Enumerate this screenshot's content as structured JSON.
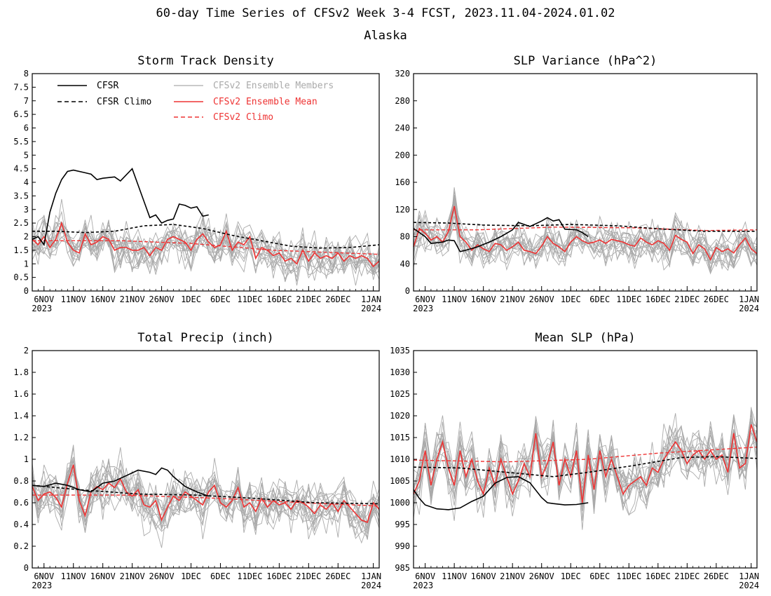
{
  "page": {
    "title": "60-day Time Series of CFSv2 Week 3-4 FCST, 2023.11.04-2024.01.02",
    "region": "Alaska"
  },
  "legend": {
    "cfsr": "CFSR",
    "cfsr_climo": "CFSR Climo",
    "members": "CFSv2 Ensemble Members",
    "ens_mean": "CFSv2 Ensemble Mean",
    "cfsv2_climo": "CFSv2 Climo"
  },
  "colors": {
    "cfsr": "#000000",
    "members": "#aaaaaa",
    "ens_mean": "#ee3333",
    "cfsv2_climo": "#ee3333",
    "axes": "#000000"
  },
  "chart_data": [
    {
      "id": "storm",
      "type": "line",
      "title": "Storm Track Density",
      "xlabel": "",
      "ylabel": "",
      "x_range": [
        "2023-11-04",
        "2024-01-02"
      ],
      "ylim": [
        0,
        8
      ],
      "yticks": [
        0,
        0.5,
        1,
        1.5,
        2,
        2.5,
        3,
        3.5,
        4,
        4.5,
        5,
        5.5,
        6,
        6.5,
        7,
        7.5,
        8
      ],
      "ytick_labels": [
        "0",
        "0.5",
        "1",
        "1.5",
        "2",
        "2.5",
        "3",
        "3.5",
        "4",
        "4.5",
        "5",
        "5.5",
        "6",
        "6.5",
        "7",
        "7.5",
        "8"
      ],
      "xtick_labels": [
        "6NOV",
        "11NOV",
        "16NOV",
        "21NOV",
        "26NOV",
        "1DEC",
        "6DEC",
        "11DEC",
        "16DEC",
        "21DEC",
        "26DEC",
        "1JAN"
      ],
      "xtick_year_labels": {
        "6NOV": "2023",
        "1JAN": "2024"
      },
      "cfsr": {
        "x": [
          "2023-11-04",
          "2023-11-05",
          "2023-11-06",
          "2023-11-07",
          "2023-11-08",
          "2023-11-09",
          "2023-11-10",
          "2023-11-11",
          "2023-11-13",
          "2023-11-14",
          "2023-11-15",
          "2023-11-16",
          "2023-11-18",
          "2023-11-19",
          "2023-11-21",
          "2023-11-22",
          "2023-11-23",
          "2023-11-24",
          "2023-11-25",
          "2023-11-26",
          "2023-11-27",
          "2023-11-28",
          "2023-11-29",
          "2023-11-30",
          "2023-12-01",
          "2023-12-02",
          "2023-12-03",
          "2023-12-04"
        ],
        "y": [
          1.9,
          2.0,
          1.7,
          2.9,
          3.6,
          4.1,
          4.4,
          4.45,
          4.35,
          4.3,
          4.1,
          4.15,
          4.2,
          4.05,
          4.5,
          3.9,
          3.3,
          2.7,
          2.8,
          2.5,
          2.6,
          2.65,
          3.2,
          3.15,
          3.05,
          3.1,
          2.75,
          2.8
        ]
      },
      "cfsr_climo": {
        "x": [
          "2023-11-04",
          "2023-11-08",
          "2023-11-13",
          "2023-11-18",
          "2023-11-23",
          "2023-11-28",
          "2023-12-03",
          "2023-12-08",
          "2023-12-13",
          "2023-12-18",
          "2023-12-23",
          "2023-12-28",
          "2024-01-02"
        ],
        "y": [
          2.2,
          2.2,
          2.15,
          2.2,
          2.4,
          2.45,
          2.3,
          2.05,
          1.85,
          1.65,
          1.58,
          1.6,
          1.7
        ]
      },
      "ens_mean": {
        "x_start": "2023-11-04",
        "y": [
          1.9,
          1.7,
          2.0,
          1.6,
          1.9,
          2.5,
          1.8,
          1.5,
          1.4,
          2.1,
          1.7,
          1.8,
          2.0,
          1.9,
          1.5,
          1.6,
          1.6,
          1.5,
          1.5,
          1.6,
          1.3,
          1.6,
          1.5,
          1.9,
          2.0,
          1.9,
          1.8,
          1.5,
          1.9,
          2.1,
          1.8,
          1.6,
          1.7,
          2.2,
          1.5,
          1.8,
          1.7,
          2.0,
          1.2,
          1.6,
          1.5,
          1.3,
          1.4,
          1.1,
          1.2,
          1.0,
          1.5,
          1.1,
          1.4,
          1.2,
          1.3,
          1.2,
          1.4,
          1.1,
          1.3,
          1.2,
          1.3,
          1.2,
          0.9,
          1.1
        ]
      },
      "cfsv2_climo": {
        "x": [
          "2023-11-04",
          "2023-11-19",
          "2023-12-01",
          "2023-12-15",
          "2024-01-02"
        ],
        "y": [
          1.85,
          1.85,
          1.75,
          1.5,
          1.35
        ]
      },
      "members": {
        "count": 16,
        "x_start": "2023-11-04",
        "y_ref": "ens_mean",
        "spread": 0.75
      }
    },
    {
      "id": "slpvar",
      "type": "line",
      "title": "SLP Variance (hPa^2)",
      "xlabel": "",
      "ylabel": "",
      "x_range": [
        "2023-11-04",
        "2024-01-02"
      ],
      "ylim": [
        0,
        320
      ],
      "yticks": [
        0,
        40,
        80,
        120,
        160,
        200,
        240,
        280,
        320
      ],
      "ytick_labels": [
        "0",
        "40",
        "80",
        "120",
        "160",
        "200",
        "240",
        "280",
        "320"
      ],
      "xtick_labels": [
        "6NOV",
        "11NOV",
        "16NOV",
        "21NOV",
        "26NOV",
        "1DEC",
        "6DEC",
        "11DEC",
        "16DEC",
        "21DEC",
        "26DEC",
        "1JAN"
      ],
      "xtick_year_labels": {
        "6NOV": "2023",
        "1JAN": "2024"
      },
      "cfsr": {
        "x": [
          "2023-11-04",
          "2023-11-06",
          "2023-11-07",
          "2023-11-09",
          "2023-11-10",
          "2023-11-11",
          "2023-11-12",
          "2023-11-13",
          "2023-11-15",
          "2023-11-17",
          "2023-11-19",
          "2023-11-21",
          "2023-11-22",
          "2023-11-24",
          "2023-11-26",
          "2023-11-27",
          "2023-11-28",
          "2023-11-29",
          "2023-11-30",
          "2023-12-02",
          "2023-12-03",
          "2023-12-04"
        ],
        "y": [
          92,
          80,
          70,
          72,
          75,
          74,
          58,
          60,
          65,
          72,
          80,
          90,
          101,
          95,
          103,
          108,
          103,
          105,
          91,
          90,
          86,
          80
        ]
      },
      "cfsr_climo": {
        "x": [
          "2023-11-04",
          "2023-11-10",
          "2023-11-16",
          "2023-11-24",
          "2023-12-01",
          "2023-12-09",
          "2023-12-17",
          "2023-12-24",
          "2024-01-02"
        ],
        "y": [
          101,
          100,
          97,
          96,
          98,
          96,
          91,
          88,
          88
        ]
      },
      "ens_mean": {
        "x_start": "2023-11-04",
        "y": [
          65,
          92,
          85,
          75,
          80,
          72,
          88,
          125,
          80,
          72,
          60,
          68,
          62,
          58,
          70,
          68,
          60,
          65,
          72,
          60,
          58,
          55,
          66,
          80,
          70,
          65,
          58,
          72,
          80,
          74,
          70,
          72,
          75,
          70,
          76,
          74,
          72,
          68,
          66,
          78,
          72,
          68,
          74,
          70,
          60,
          82,
          76,
          72,
          55,
          68,
          62,
          46,
          64,
          58,
          62,
          56,
          68,
          78,
          62,
          55
        ]
      },
      "cfsv2_climo": {
        "x": [
          "2023-11-04",
          "2023-11-15",
          "2023-11-28",
          "2023-12-12",
          "2023-12-24",
          "2024-01-02"
        ],
        "y": [
          90,
          90,
          94,
          93,
          89,
          90
        ]
      },
      "members": {
        "count": 16,
        "x_start": "2023-11-04",
        "y_ref": "ens_mean",
        "spread": 28
      }
    },
    {
      "id": "precip",
      "type": "line",
      "title": "Total Precip (inch)",
      "xlabel": "",
      "ylabel": "",
      "x_range": [
        "2023-11-04",
        "2024-01-02"
      ],
      "ylim": [
        0,
        2
      ],
      "yticks": [
        0,
        0.2,
        0.4,
        0.6,
        0.8,
        1,
        1.2,
        1.4,
        1.6,
        1.8,
        2
      ],
      "ytick_labels": [
        "0",
        "0.2",
        "0.4",
        "0.6",
        "0.8",
        "1",
        "1.2",
        "1.4",
        "1.6",
        "1.8",
        "2"
      ],
      "xtick_labels": [
        "6NOV",
        "11NOV",
        "16NOV",
        "21NOV",
        "26NOV",
        "1DEC",
        "6DEC",
        "11DEC",
        "16DEC",
        "21DEC",
        "26DEC",
        "1JAN"
      ],
      "xtick_year_labels": {
        "6NOV": "2023",
        "1JAN": "2024"
      },
      "cfsr": {
        "x": [
          "2023-11-04",
          "2023-11-06",
          "2023-11-08",
          "2023-11-10",
          "2023-11-12",
          "2023-11-14",
          "2023-11-16",
          "2023-11-18",
          "2023-11-20",
          "2023-11-22",
          "2023-11-24",
          "2023-11-25",
          "2023-11-26",
          "2023-11-27",
          "2023-11-28",
          "2023-11-30",
          "2023-12-02",
          "2023-12-04"
        ],
        "y": [
          0.76,
          0.75,
          0.78,
          0.76,
          0.72,
          0.7,
          0.78,
          0.8,
          0.85,
          0.9,
          0.88,
          0.86,
          0.92,
          0.9,
          0.84,
          0.75,
          0.7,
          0.66
        ]
      },
      "cfsr_climo": {
        "x": [
          "2023-11-04",
          "2023-11-12",
          "2023-11-22",
          "2023-12-02",
          "2023-12-12",
          "2023-12-22",
          "2024-01-02"
        ],
        "y": [
          0.76,
          0.72,
          0.68,
          0.67,
          0.64,
          0.6,
          0.59
        ]
      },
      "ens_mean": {
        "x_start": "2023-11-04",
        "y": [
          0.75,
          0.62,
          0.68,
          0.7,
          0.65,
          0.56,
          0.78,
          0.95,
          0.62,
          0.48,
          0.7,
          0.75,
          0.72,
          0.78,
          0.74,
          0.82,
          0.7,
          0.66,
          0.72,
          0.58,
          0.56,
          0.62,
          0.44,
          0.56,
          0.66,
          0.62,
          0.7,
          0.66,
          0.62,
          0.58,
          0.7,
          0.76,
          0.6,
          0.56,
          0.62,
          0.74,
          0.56,
          0.6,
          0.52,
          0.64,
          0.56,
          0.62,
          0.58,
          0.6,
          0.54,
          0.62,
          0.6,
          0.56,
          0.5,
          0.58,
          0.54,
          0.6,
          0.52,
          0.62,
          0.56,
          0.5,
          0.44,
          0.42,
          0.6,
          0.54
        ]
      },
      "cfsv2_climo": {
        "x": [
          "2023-11-04",
          "2023-11-20",
          "2023-12-06",
          "2023-12-20",
          "2024-01-02"
        ],
        "y": [
          0.67,
          0.67,
          0.64,
          0.6,
          0.57
        ]
      },
      "members": {
        "count": 16,
        "x_start": "2023-11-04",
        "y_ref": "ens_mean",
        "spread": 0.22
      }
    },
    {
      "id": "mslp",
      "type": "line",
      "title": "Mean SLP (hPa)",
      "xlabel": "",
      "ylabel": "",
      "x_range": [
        "2023-11-04",
        "2024-01-02"
      ],
      "ylim": [
        985,
        1035
      ],
      "yticks": [
        985,
        990,
        995,
        1000,
        1005,
        1010,
        1015,
        1020,
        1025,
        1030,
        1035
      ],
      "ytick_labels": [
        "985",
        "990",
        "995",
        "1000",
        "1005",
        "1010",
        "1015",
        "1020",
        "1025",
        "1030",
        "1035"
      ],
      "xtick_labels": [
        "6NOV",
        "11NOV",
        "16NOV",
        "21NOV",
        "26NOV",
        "1DEC",
        "6DEC",
        "11DEC",
        "16DEC",
        "21DEC",
        "26DEC",
        "1JAN"
      ],
      "xtick_year_labels": {
        "6NOV": "2023",
        "1JAN": "2024"
      },
      "cfsr": {
        "x": [
          "2023-11-04",
          "2023-11-05",
          "2023-11-06",
          "2023-11-08",
          "2023-11-10",
          "2023-11-12",
          "2023-11-14",
          "2023-11-16",
          "2023-11-18",
          "2023-11-20",
          "2023-11-22",
          "2023-11-24",
          "2023-11-26",
          "2023-11-27",
          "2023-11-28",
          "2023-11-30",
          "2023-12-02",
          "2023-12-04"
        ],
        "y": [
          1003,
          1001,
          999.5,
          998.6,
          998.4,
          998.8,
          1000.3,
          1001.5,
          1004.5,
          1005.8,
          1006,
          1004.6,
          1001.2,
          1000,
          999.8,
          999.5,
          999.6,
          1000
        ]
      },
      "cfsr_climo": {
        "x": [
          "2023-11-04",
          "2023-11-12",
          "2023-11-20",
          "2023-11-28",
          "2023-12-04",
          "2023-12-12",
          "2023-12-20",
          "2023-12-26",
          "2024-01-02"
        ],
        "y": [
          1008.2,
          1008,
          1007,
          1006,
          1007,
          1008.6,
          1010.4,
          1010.6,
          1010.2
        ]
      },
      "ens_mean": {
        "x_start": "2023-11-04",
        "y": [
          1002,
          1005,
          1012,
          1004,
          1010,
          1014,
          1008,
          1004,
          1012,
          1006,
          1010,
          1005,
          1002,
          1008,
          1004,
          1010,
          1006,
          1002,
          1005,
          1009,
          1006,
          1016,
          1006,
          1009,
          1014,
          1004,
          1010,
          1006,
          1012,
          1000,
          1011,
          1003,
          1012,
          1006,
          1010,
          1006,
          1002,
          1004,
          1005,
          1006,
          1004,
          1008,
          1007,
          1010,
          1012,
          1014,
          1012,
          1009,
          1011,
          1012,
          1010,
          1012,
          1010,
          1011,
          1007,
          1016,
          1008,
          1009,
          1018,
          1014
        ]
      },
      "cfsv2_climo": {
        "x": [
          "2023-11-04",
          "2023-11-20",
          "2023-12-04",
          "2023-12-16",
          "2024-01-02"
        ],
        "y": [
          1009.8,
          1009.4,
          1010,
          1011.4,
          1012.8
        ]
      },
      "members": {
        "count": 16,
        "x_start": "2023-11-04",
        "y_ref": "ens_mean",
        "spread": 6
      }
    }
  ]
}
